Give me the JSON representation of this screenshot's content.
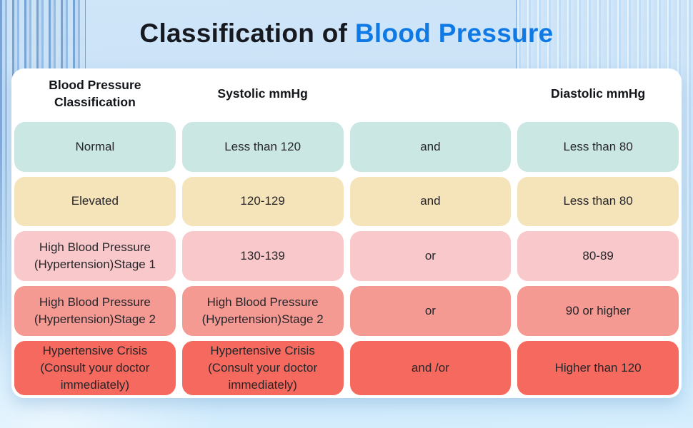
{
  "title": {
    "prefix": "Classification of ",
    "highlight": "Blood Pressure"
  },
  "colors": {
    "title_dark": "#16191f",
    "title_blue": "#0f7ae5",
    "card_bg": "#ffffff",
    "cell_text": "#26262a",
    "row_normal": "#cbe7e3",
    "row_elevated": "#f5e3ba",
    "row_stage1": "#f9c8ca",
    "row_stage2": "#f49a93",
    "row_crisis": "#f5695e"
  },
  "chart_data": {
    "type": "table",
    "title": "Classification of Blood Pressure",
    "headers": {
      "classification": "Blood Pressure Classification",
      "systolic": "Systolic mmHg",
      "connector": "",
      "diastolic": "Diastolic mmHg"
    },
    "rows": [
      {
        "classification": "Normal",
        "systolic": "Less than 120",
        "connector": "and",
        "diastolic": "Less than 80",
        "bg": "#cbe7e3"
      },
      {
        "classification": "Elevated",
        "systolic": "120-129",
        "connector": "and",
        "diastolic": "Less than 80",
        "bg": "#f5e3ba"
      },
      {
        "classification": "High Blood Pressure (Hypertension)Stage 1",
        "systolic": "130-139",
        "connector": "or",
        "diastolic": "80-89",
        "bg": "#f9c8ca"
      },
      {
        "classification": "High Blood Pressure (Hypertension)Stage 2",
        "systolic": "High Blood Pressure (Hypertension)Stage 2",
        "connector": "or",
        "diastolic": "90 or higher",
        "bg": "#f49a93"
      },
      {
        "classification": "Hypertensive Crisis (Consult your doctor immediately)",
        "systolic": "Hypertensive Crisis (Consult your doctor immediately)",
        "connector": "and /or",
        "diastolic": "Higher than 120",
        "bg": "#f5695e"
      }
    ]
  }
}
